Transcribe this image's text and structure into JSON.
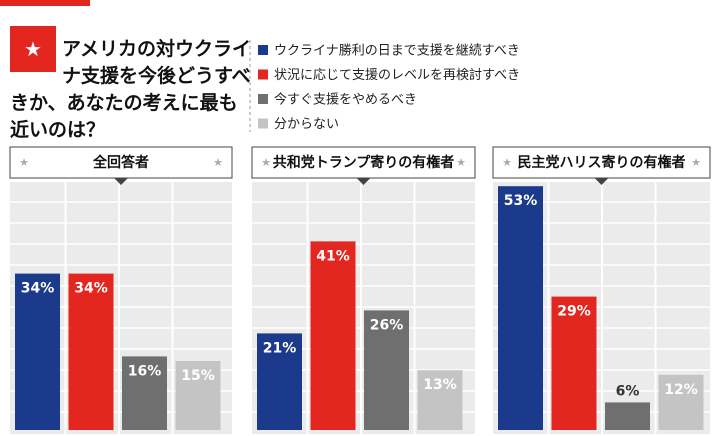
{
  "chart_data": {
    "type": "bar",
    "title": "アメリカの対ウクライナ支援を今後どうすべきか、あなたの考えに最も近いのは？",
    "categories": [
      "全回答者",
      "共和党トランプ寄りの有権者",
      "民主党ハリス寄りの有権者"
    ],
    "series": [
      {
        "name": "ウクライナ勝利の日まで支援を継続すべき",
        "color": "#1c3a8c",
        "values": [
          34,
          21,
          53
        ],
        "value_labels": [
          "34%",
          "21%",
          "53%"
        ]
      },
      {
        "name": "状況に応じて支援のレベルを再検討すべき",
        "color": "#e3261f",
        "values": [
          34,
          41,
          29
        ],
        "value_labels": [
          "34%",
          "41%",
          "29%"
        ]
      },
      {
        "name": "今すぐ支援をやめるべき",
        "color": "#6f6f6f",
        "values": [
          16,
          26,
          6
        ],
        "value_labels": [
          "16%",
          "26%",
          "6%"
        ]
      },
      {
        "name": "分からない",
        "color": "#c4c4c4",
        "values": [
          15,
          13,
          12
        ],
        "value_labels": [
          "15%",
          "13%",
          "12%"
        ]
      }
    ]
  }
}
